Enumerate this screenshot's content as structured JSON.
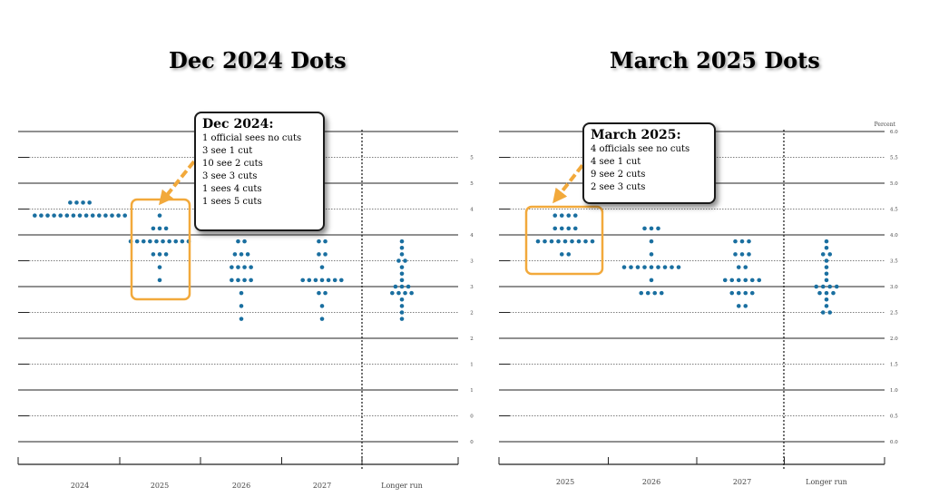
{
  "panels": [
    {
      "title": "Dec 2024 Dots"
    },
    {
      "title": "March 2025 Dots"
    }
  ],
  "callouts": [
    {
      "title": "Dec 2024:",
      "lines": [
        "1 official sees no cuts",
        "3 see 1 cut",
        "10 see 2 cuts",
        "3 see 3 cuts",
        "1 sees 4 cuts",
        "1 sees 5 cuts"
      ]
    },
    {
      "title": "March 2025:",
      "lines": [
        "4 officials see no cuts",
        "4 see 1 cut",
        "9 see 2 cuts",
        "2 see 3 cuts"
      ]
    }
  ],
  "chart_data": [
    {
      "type": "scatter",
      "title": "Dec 2024 Dots",
      "categories": [
        "2024",
        "2025",
        "2026",
        "2027",
        "Longer run"
      ],
      "ylabel": "",
      "ylim": [
        0,
        6
      ],
      "y_tick_labels": [
        "",
        "5",
        "5",
        "4",
        "4",
        "3",
        "3",
        "2",
        "2",
        "1",
        "1",
        "0",
        "0"
      ],
      "highlighted_category": "2025",
      "dot_color": "#1a6fa0",
      "points": [
        {
          "x": "2024",
          "y": 4.625,
          "n": 4
        },
        {
          "x": "2024",
          "y": 4.375,
          "n": 15
        },
        {
          "x": "2025",
          "y": 4.375,
          "n": 1
        },
        {
          "x": "2025",
          "y": 4.125,
          "n": 3
        },
        {
          "x": "2025",
          "y": 3.875,
          "n": 10
        },
        {
          "x": "2025",
          "y": 3.625,
          "n": 3
        },
        {
          "x": "2025",
          "y": 3.375,
          "n": 1
        },
        {
          "x": "2025",
          "y": 3.125,
          "n": 1
        },
        {
          "x": "2026",
          "y": 3.875,
          "n": 2
        },
        {
          "x": "2026",
          "y": 3.625,
          "n": 3
        },
        {
          "x": "2026",
          "y": 3.375,
          "n": 4
        },
        {
          "x": "2026",
          "y": 3.125,
          "n": 4
        },
        {
          "x": "2026",
          "y": 2.875,
          "n": 1
        },
        {
          "x": "2026",
          "y": 2.625,
          "n": 1
        },
        {
          "x": "2026",
          "y": 2.375,
          "n": 1
        },
        {
          "x": "2027",
          "y": 3.875,
          "n": 2
        },
        {
          "x": "2027",
          "y": 3.625,
          "n": 2
        },
        {
          "x": "2027",
          "y": 3.375,
          "n": 1
        },
        {
          "x": "2027",
          "y": 3.125,
          "n": 7
        },
        {
          "x": "2027",
          "y": 2.875,
          "n": 2
        },
        {
          "x": "2027",
          "y": 2.625,
          "n": 1
        },
        {
          "x": "2027",
          "y": 2.375,
          "n": 1
        },
        {
          "x": "Longer run",
          "y": 3.875,
          "n": 1
        },
        {
          "x": "Longer run",
          "y": 3.75,
          "n": 1
        },
        {
          "x": "Longer run",
          "y": 3.625,
          "n": 1
        },
        {
          "x": "Longer run",
          "y": 3.5,
          "n": 2
        },
        {
          "x": "Longer run",
          "y": 3.375,
          "n": 1
        },
        {
          "x": "Longer run",
          "y": 3.25,
          "n": 1
        },
        {
          "x": "Longer run",
          "y": 3.125,
          "n": 1
        },
        {
          "x": "Longer run",
          "y": 3.0,
          "n": 3
        },
        {
          "x": "Longer run",
          "y": 2.875,
          "n": 4
        },
        {
          "x": "Longer run",
          "y": 2.75,
          "n": 1
        },
        {
          "x": "Longer run",
          "y": 2.625,
          "n": 1
        },
        {
          "x": "Longer run",
          "y": 2.5,
          "n": 1
        },
        {
          "x": "Longer run",
          "y": 2.375,
          "n": 1
        }
      ]
    },
    {
      "type": "scatter",
      "title": "March 2025 Dots",
      "categories": [
        "2025",
        "2026",
        "2027",
        "Longer run"
      ],
      "ylabel": "Percent",
      "ylim": [
        0,
        6
      ],
      "y_tick_labels": [
        "6.0",
        "5.5",
        "5.0",
        "4.5",
        "4.0",
        "3.5",
        "3.0",
        "2.5",
        "2.0",
        "1.5",
        "1.0",
        "0.5",
        "0.0"
      ],
      "highlighted_category": "2025",
      "dot_color": "#1a6fa0",
      "points": [
        {
          "x": "2025",
          "y": 4.375,
          "n": 4
        },
        {
          "x": "2025",
          "y": 4.125,
          "n": 4
        },
        {
          "x": "2025",
          "y": 3.875,
          "n": 9
        },
        {
          "x": "2025",
          "y": 3.625,
          "n": 2
        },
        {
          "x": "2026",
          "y": 4.125,
          "n": 3
        },
        {
          "x": "2026",
          "y": 3.875,
          "n": 1
        },
        {
          "x": "2026",
          "y": 3.625,
          "n": 1
        },
        {
          "x": "2026",
          "y": 3.375,
          "n": 9
        },
        {
          "x": "2026",
          "y": 3.125,
          "n": 1
        },
        {
          "x": "2026",
          "y": 2.875,
          "n": 4
        },
        {
          "x": "2027",
          "y": 3.875,
          "n": 3
        },
        {
          "x": "2027",
          "y": 3.625,
          "n": 3
        },
        {
          "x": "2027",
          "y": 3.375,
          "n": 2
        },
        {
          "x": "2027",
          "y": 3.125,
          "n": 6
        },
        {
          "x": "2027",
          "y": 2.875,
          "n": 4
        },
        {
          "x": "2027",
          "y": 2.625,
          "n": 2
        },
        {
          "x": "Longer run",
          "y": 3.875,
          "n": 1
        },
        {
          "x": "Longer run",
          "y": 3.75,
          "n": 1
        },
        {
          "x": "Longer run",
          "y": 3.625,
          "n": 2
        },
        {
          "x": "Longer run",
          "y": 3.5,
          "n": 1
        },
        {
          "x": "Longer run",
          "y": 3.375,
          "n": 1
        },
        {
          "x": "Longer run",
          "y": 3.25,
          "n": 1
        },
        {
          "x": "Longer run",
          "y": 3.125,
          "n": 1
        },
        {
          "x": "Longer run",
          "y": 3.0,
          "n": 4
        },
        {
          "x": "Longer run",
          "y": 2.875,
          "n": 3
        },
        {
          "x": "Longer run",
          "y": 2.75,
          "n": 1
        },
        {
          "x": "Longer run",
          "y": 2.625,
          "n": 1
        },
        {
          "x": "Longer run",
          "y": 2.5,
          "n": 2
        }
      ]
    }
  ],
  "colors": {
    "dots": "#1a6fa0",
    "highlight": "#f2a93b",
    "arrow": "#f2a93b"
  }
}
